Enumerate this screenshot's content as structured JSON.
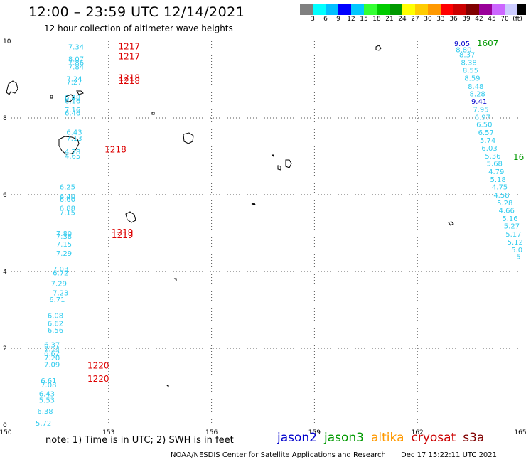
{
  "header": {
    "title": "12:00 – 23:59 UTC 12/14/2021",
    "subtitle": "12 hour collection of altimeter wave heights"
  },
  "colorbar": {
    "colors": [
      "#808080",
      "#00ffff",
      "#00bfff",
      "#0000ff",
      "#00c8ff",
      "#33ff33",
      "#00cc00",
      "#009900",
      "#ffff00",
      "#ffcc00",
      "#ff9900",
      "#ff0000",
      "#cc0000",
      "#800000",
      "#990099",
      "#cc66ff",
      "#ccccff",
      "#000000"
    ],
    "labels": [
      "3",
      "6",
      "9",
      "12",
      "15",
      "18",
      "21",
      "24",
      "27",
      "30",
      "33",
      "36",
      "39",
      "42",
      "45",
      "70"
    ],
    "unit": "(ft)"
  },
  "map": {
    "x_ticks": [
      "150",
      "153",
      "156",
      "159",
      "162",
      "165"
    ],
    "y_ticks": [
      "0",
      "2",
      "4",
      "6",
      "8",
      "10"
    ],
    "xlim": [
      150,
      165
    ],
    "ylim": [
      0,
      10
    ],
    "colors": {
      "jason2": "#0000cc",
      "jason3": "#009900",
      "altika": "#ff9900",
      "cryosat": "#cc0000",
      "s3a": "#800000"
    }
  },
  "tracks": {
    "west": [
      {
        "lon": 152.05,
        "lat": 9.86,
        "v": "7.34",
        "c": "#33ccee"
      },
      {
        "lon": 152.05,
        "lat": 9.55,
        "v": "8.07",
        "c": "#33ccee"
      },
      {
        "lon": 152.05,
        "lat": 9.45,
        "v": "7.86",
        "c": "#33ccee"
      },
      {
        "lon": 152.05,
        "lat": 9.34,
        "v": "7.84",
        "c": "#33ccee"
      },
      {
        "lon": 152.0,
        "lat": 9.03,
        "v": "7.24",
        "c": "#33ccee"
      },
      {
        "lon": 152.0,
        "lat": 8.94,
        "v": "7.27",
        "c": "#33ccee"
      },
      {
        "lon": 151.95,
        "lat": 8.55,
        "v": "6.48",
        "c": "#33ccee"
      },
      {
        "lon": 151.95,
        "lat": 8.45,
        "v": "6.16",
        "c": "#33ccee"
      },
      {
        "lon": 151.95,
        "lat": 8.22,
        "v": "7.16",
        "c": "#33ccee"
      },
      {
        "lon": 151.95,
        "lat": 8.14,
        "v": "6.46",
        "c": "#33ccee"
      },
      {
        "lon": 152.0,
        "lat": 7.64,
        "v": "6.43",
        "c": "#33ccee"
      },
      {
        "lon": 152.0,
        "lat": 7.48,
        "v": "7.13",
        "c": "#33ccee"
      },
      {
        "lon": 151.95,
        "lat": 7.13,
        "v": "4.78",
        "c": "#33ccee"
      },
      {
        "lon": 151.95,
        "lat": 7.02,
        "v": "4.65",
        "c": "#33ccee"
      },
      {
        "lon": 151.8,
        "lat": 6.21,
        "v": "6.25",
        "c": "#33ccee"
      },
      {
        "lon": 151.8,
        "lat": 5.96,
        "v": "6.40",
        "c": "#33ccee"
      },
      {
        "lon": 151.8,
        "lat": 5.89,
        "v": "6.60",
        "c": "#33ccee"
      },
      {
        "lon": 151.8,
        "lat": 5.66,
        "v": "6.88",
        "c": "#33ccee"
      },
      {
        "lon": 151.8,
        "lat": 5.55,
        "v": "7.15",
        "c": "#33ccee"
      },
      {
        "lon": 151.7,
        "lat": 5.0,
        "v": "7.80",
        "c": "#33ccee"
      },
      {
        "lon": 151.7,
        "lat": 4.93,
        "v": "7.38",
        "c": "#33ccee"
      },
      {
        "lon": 151.7,
        "lat": 4.72,
        "v": "7.15",
        "c": "#33ccee"
      },
      {
        "lon": 151.7,
        "lat": 4.48,
        "v": "7.29",
        "c": "#33ccee"
      },
      {
        "lon": 151.6,
        "lat": 4.07,
        "v": "7.03",
        "c": "#33ccee"
      },
      {
        "lon": 151.6,
        "lat": 3.97,
        "v": "6.72",
        "c": "#33ccee"
      },
      {
        "lon": 151.55,
        "lat": 3.69,
        "v": "7.29",
        "c": "#33ccee"
      },
      {
        "lon": 151.6,
        "lat": 3.45,
        "v": "7.23",
        "c": "#33ccee"
      },
      {
        "lon": 151.5,
        "lat": 3.28,
        "v": "6.71",
        "c": "#33ccee"
      },
      {
        "lon": 151.45,
        "lat": 2.86,
        "v": "6.08",
        "c": "#33ccee"
      },
      {
        "lon": 151.45,
        "lat": 2.66,
        "v": "6.62",
        "c": "#33ccee"
      },
      {
        "lon": 151.45,
        "lat": 2.48,
        "v": "6.56",
        "c": "#33ccee"
      },
      {
        "lon": 151.35,
        "lat": 2.1,
        "v": "6.37",
        "c": "#33ccee"
      },
      {
        "lon": 151.35,
        "lat": 1.99,
        "v": "7.14",
        "c": "#33ccee"
      },
      {
        "lon": 151.35,
        "lat": 1.88,
        "v": "6.62",
        "c": "#33ccee"
      },
      {
        "lon": 151.35,
        "lat": 1.76,
        "v": "7.20",
        "c": "#33ccee"
      },
      {
        "lon": 151.35,
        "lat": 1.58,
        "v": "7.09",
        "c": "#33ccee"
      },
      {
        "lon": 151.25,
        "lat": 1.17,
        "v": "6.61",
        "c": "#33ccee"
      },
      {
        "lon": 151.25,
        "lat": 1.06,
        "v": "7.08",
        "c": "#33ccee"
      },
      {
        "lon": 151.2,
        "lat": 0.82,
        "v": "6.43",
        "c": "#33ccee"
      },
      {
        "lon": 151.2,
        "lat": 0.66,
        "v": "5.53",
        "c": "#33ccee"
      },
      {
        "lon": 151.15,
        "lat": 0.37,
        "v": "6.38",
        "c": "#33ccee"
      },
      {
        "lon": 151.1,
        "lat": 0.06,
        "v": "5.72",
        "c": "#33ccee"
      }
    ],
    "east": [
      {
        "lon": 163.3,
        "lat": 9.94,
        "v": "9.05",
        "c": "#0000cc"
      },
      {
        "lon": 163.35,
        "lat": 9.79,
        "v": "8.80",
        "c": "#33ccee"
      },
      {
        "lon": 163.45,
        "lat": 9.66,
        "v": "8.37",
        "c": "#33ccee"
      },
      {
        "lon": 163.5,
        "lat": 9.45,
        "v": "8.38",
        "c": "#33ccee"
      },
      {
        "lon": 163.55,
        "lat": 9.25,
        "v": "8.55",
        "c": "#33ccee"
      },
      {
        "lon": 163.6,
        "lat": 9.05,
        "v": "8.59",
        "c": "#33ccee"
      },
      {
        "lon": 163.7,
        "lat": 8.83,
        "v": "8.48",
        "c": "#33ccee"
      },
      {
        "lon": 163.75,
        "lat": 8.64,
        "v": "8.28",
        "c": "#33ccee"
      },
      {
        "lon": 163.8,
        "lat": 8.44,
        "v": "9.41",
        "c": "#0000cc"
      },
      {
        "lon": 163.85,
        "lat": 8.23,
        "v": "7.95",
        "c": "#33ccee"
      },
      {
        "lon": 163.9,
        "lat": 8.03,
        "v": "6.97",
        "c": "#33ccee"
      },
      {
        "lon": 163.95,
        "lat": 7.84,
        "v": "6.50",
        "c": "#33ccee"
      },
      {
        "lon": 164.0,
        "lat": 7.63,
        "v": "6.57",
        "c": "#33ccee"
      },
      {
        "lon": 164.05,
        "lat": 7.43,
        "v": "5.74",
        "c": "#33ccee"
      },
      {
        "lon": 164.1,
        "lat": 7.22,
        "v": "6.03",
        "c": "#33ccee"
      },
      {
        "lon": 164.2,
        "lat": 7.02,
        "v": "5.36",
        "c": "#33ccee"
      },
      {
        "lon": 164.25,
        "lat": 6.82,
        "v": "5.68",
        "c": "#33ccee"
      },
      {
        "lon": 164.3,
        "lat": 6.61,
        "v": "4.79",
        "c": "#33ccee"
      },
      {
        "lon": 164.35,
        "lat": 6.41,
        "v": "5.18",
        "c": "#33ccee"
      },
      {
        "lon": 164.4,
        "lat": 6.21,
        "v": "4.75",
        "c": "#33ccee"
      },
      {
        "lon": 164.45,
        "lat": 6.0,
        "v": "4.58",
        "c": "#33ccee"
      },
      {
        "lon": 164.55,
        "lat": 5.8,
        "v": "5.28",
        "c": "#33ccee"
      },
      {
        "lon": 164.6,
        "lat": 5.6,
        "v": "4.66",
        "c": "#33ccee"
      },
      {
        "lon": 164.7,
        "lat": 5.39,
        "v": "5.16",
        "c": "#33ccee"
      },
      {
        "lon": 164.75,
        "lat": 5.19,
        "v": "5.27",
        "c": "#33ccee"
      },
      {
        "lon": 164.8,
        "lat": 4.98,
        "v": "5.17",
        "c": "#33ccee"
      },
      {
        "lon": 164.85,
        "lat": 4.78,
        "v": "5.12",
        "c": "#33ccee"
      },
      {
        "lon": 164.9,
        "lat": 4.57,
        "v": "5.0",
        "c": "#33ccee"
      },
      {
        "lon": 164.95,
        "lat": 4.4,
        "v": "5",
        "c": "#33ccee"
      }
    ],
    "time_labels": [
      {
        "lon": 153.6,
        "lat": 9.86,
        "v": "1217",
        "c": "#dd0000"
      },
      {
        "lon": 153.6,
        "lat": 9.6,
        "v": "1217",
        "c": "#dd0000"
      },
      {
        "lon": 153.6,
        "lat": 9.05,
        "v": "1218",
        "c": "#dd0000"
      },
      {
        "lon": 153.6,
        "lat": 8.96,
        "v": "1218",
        "c": "#dd0000"
      },
      {
        "lon": 153.2,
        "lat": 7.18,
        "v": "1218",
        "c": "#dd0000"
      },
      {
        "lon": 153.4,
        "lat": 5.02,
        "v": "1219",
        "c": "#dd0000"
      },
      {
        "lon": 153.4,
        "lat": 4.94,
        "v": "1219",
        "c": "#dd0000"
      },
      {
        "lon": 152.7,
        "lat": 1.55,
        "v": "1220",
        "c": "#dd0000"
      },
      {
        "lon": 152.7,
        "lat": 1.2,
        "v": "1220",
        "c": "#dd0000"
      },
      {
        "lon": 164.05,
        "lat": 9.94,
        "v": "1607",
        "c": "#009900"
      },
      {
        "lon": 164.95,
        "lat": 6.98,
        "v": "16",
        "c": "#009900"
      }
    ]
  },
  "footer": {
    "note": "note:  1) Time is in UTC;  2) SWH is in feet",
    "legend": [
      {
        "label": "jason2",
        "color": "#0000cc"
      },
      {
        "label": "jason3",
        "color": "#009900"
      },
      {
        "label": "altika",
        "color": "#ff9900"
      },
      {
        "label": "cryosat",
        "color": "#cc0000"
      },
      {
        "label": "s3a",
        "color": "#800000"
      }
    ],
    "credit": "NOAA/NESDIS Center for Satellite Applications and Research",
    "timestamp": "Dec 17 15:22:11 UTC 2021"
  }
}
